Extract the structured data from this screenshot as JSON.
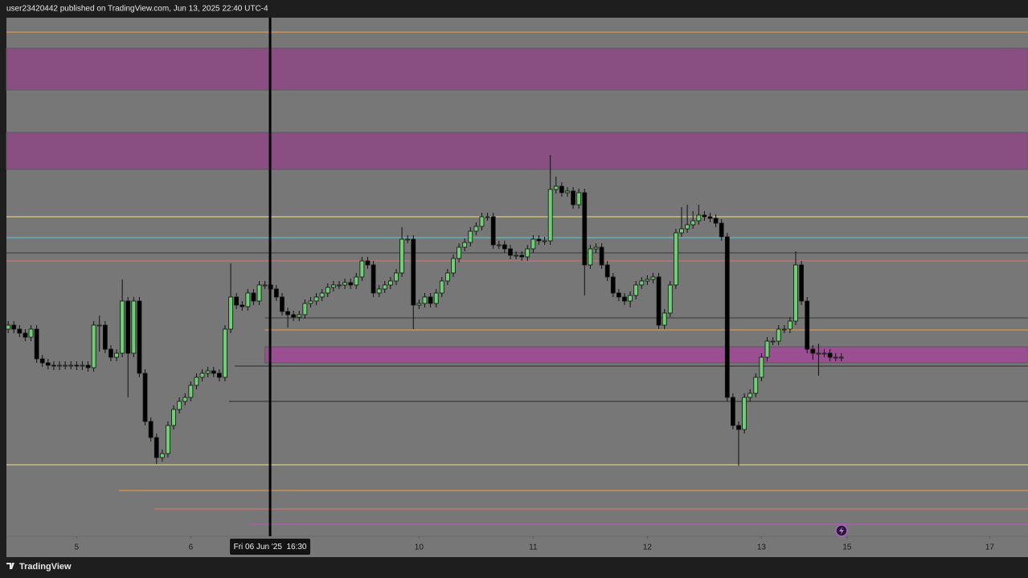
{
  "chart_data": {
    "type": "candlestick",
    "header": "user23420442 published on TradingView.com, Jun 13, 2025 22:40 UTC-4",
    "brand": "TradingView",
    "up_color": "#6fcf75",
    "down_color": "#000000",
    "background": "#777777",
    "xlim": [
      -0.3,
      178.7
    ],
    "ylim": [
      0,
      646
    ],
    "xticks": [
      {
        "value": 12,
        "label": "5"
      },
      {
        "value": 32,
        "label": "6"
      },
      {
        "value": 72,
        "label": "10"
      },
      {
        "value": 92,
        "label": "11"
      },
      {
        "value": 112,
        "label": "12"
      },
      {
        "value": 132,
        "label": "13"
      },
      {
        "value": 147,
        "label": "15"
      },
      {
        "value": 172,
        "label": "17"
      }
    ],
    "crosshair": {
      "x": 45.9,
      "label": "Fri 06 Jun '25  16:30"
    },
    "levels": [
      {
        "value": 628,
        "color": "#f0a040"
      },
      {
        "value": 398,
        "color": "#f0e080"
      },
      {
        "value": 372,
        "color": "#5cc8d8"
      },
      {
        "value": 353,
        "color": "#3a3a3a"
      },
      {
        "value": 343,
        "color": "#e07070"
      },
      {
        "value": 272,
        "color": "#3a3a3a",
        "from": 45
      },
      {
        "value": 257,
        "color": "#f0a040",
        "from": 45
      },
      {
        "value": 212,
        "color": "#2a2a2a",
        "from": 39.7
      },
      {
        "value": 168,
        "color": "#2a2a2a",
        "from": 38.7
      },
      {
        "value": 89,
        "color": "#f0e080"
      },
      {
        "value": 57,
        "color": "#f0a040",
        "from": 19.4
      },
      {
        "value": 34,
        "color": "#e07070",
        "from": 25.6
      },
      {
        "value": 15,
        "color": "#c050c0",
        "from": 42.3
      }
    ],
    "zones": [
      {
        "top": 608,
        "bottom": 556,
        "color": "#8a4f82"
      },
      {
        "top": 503,
        "bottom": 457,
        "color": "#8a4f82"
      },
      {
        "top": 236,
        "bottom": 216,
        "color": "#9a4f92",
        "from": 45
      }
    ],
    "open": [
      258,
      263,
      258,
      253,
      248,
      258,
      221,
      216,
      213,
      212,
      213,
      213,
      213,
      212,
      213,
      210,
      263,
      263,
      233,
      223,
      228,
      293,
      228,
      293,
      203,
      143,
      123,
      98,
      103,
      138,
      158,
      168,
      173,
      188,
      198,
      203,
      206,
      203,
      198,
      258,
      298,
      288,
      286,
      303,
      293,
      313,
      313,
      308,
      298,
      280,
      276,
      273,
      276,
      290,
      293,
      298,
      303,
      310,
      313,
      313,
      316,
      313,
      323,
      343,
      338,
      303,
      308,
      313,
      318,
      328,
      370,
      370,
      288,
      290,
      298,
      290,
      303,
      318,
      328,
      346,
      360,
      366,
      380,
      386,
      398,
      398,
      363,
      363,
      358,
      350,
      350,
      348,
      358,
      370,
      368,
      368,
      432,
      436,
      428,
      430,
      413,
      428,
      338,
      358,
      360,
      338,
      323,
      303,
      298,
      293,
      300,
      313,
      318,
      320,
      323,
      263,
      278,
      313,
      378,
      383,
      388,
      393,
      400,
      398,
      396,
      390,
      373,
      173,
      138,
      133,
      173,
      178,
      198,
      223,
      243,
      243,
      258,
      258,
      268,
      338,
      293,
      233,
      228,
      228,
      228,
      223,
      223
    ],
    "close": [
      263,
      258,
      253,
      248,
      258,
      221,
      216,
      213,
      212,
      213,
      213,
      213,
      212,
      213,
      210,
      263,
      263,
      233,
      223,
      228,
      293,
      228,
      293,
      203,
      143,
      123,
      98,
      103,
      138,
      158,
      168,
      173,
      188,
      198,
      203,
      206,
      203,
      198,
      258,
      298,
      288,
      286,
      303,
      293,
      313,
      313,
      308,
      298,
      280,
      276,
      273,
      276,
      290,
      293,
      298,
      303,
      310,
      313,
      313,
      316,
      313,
      323,
      343,
      338,
      303,
      308,
      313,
      318,
      328,
      370,
      370,
      288,
      290,
      298,
      290,
      303,
      318,
      328,
      346,
      360,
      366,
      380,
      386,
      398,
      398,
      363,
      363,
      358,
      350,
      350,
      348,
      358,
      370,
      368,
      368,
      432,
      436,
      428,
      430,
      413,
      428,
      338,
      358,
      360,
      338,
      323,
      303,
      298,
      293,
      300,
      313,
      318,
      320,
      323,
      263,
      278,
      313,
      378,
      383,
      388,
      393,
      400,
      398,
      396,
      390,
      373,
      173,
      138,
      133,
      173,
      178,
      198,
      223,
      243,
      243,
      258,
      258,
      268,
      338,
      293,
      233,
      228,
      228,
      228,
      223,
      223,
      223
    ],
    "high": [
      268,
      268,
      263,
      258,
      263,
      263,
      226,
      221,
      218,
      218,
      218,
      218,
      218,
      218,
      218,
      268,
      275,
      268,
      238,
      233,
      320,
      298,
      298,
      298,
      208,
      148,
      128,
      108,
      143,
      163,
      173,
      178,
      193,
      203,
      208,
      211,
      211,
      208,
      263,
      340,
      303,
      293,
      308,
      308,
      318,
      318,
      318,
      313,
      303,
      285,
      281,
      281,
      295,
      298,
      303,
      308,
      315,
      318,
      318,
      321,
      321,
      328,
      348,
      348,
      343,
      313,
      318,
      323,
      333,
      385,
      375,
      375,
      295,
      303,
      303,
      308,
      323,
      333,
      351,
      365,
      371,
      385,
      391,
      403,
      403,
      403,
      368,
      368,
      363,
      355,
      355,
      363,
      375,
      375,
      373,
      475,
      448,
      441,
      435,
      435,
      433,
      433,
      363,
      365,
      365,
      343,
      328,
      308,
      303,
      305,
      318,
      323,
      325,
      328,
      328,
      283,
      318,
      383,
      410,
      413,
      405,
      413,
      405,
      403,
      401,
      395,
      378,
      178,
      143,
      178,
      183,
      203,
      228,
      248,
      248,
      263,
      263,
      273,
      355,
      343,
      298,
      238,
      240,
      233,
      233,
      228,
      228
    ],
    "low": [
      253,
      253,
      248,
      243,
      243,
      216,
      211,
      208,
      207,
      207,
      208,
      208,
      207,
      207,
      205,
      205,
      230,
      228,
      218,
      218,
      223,
      173,
      223,
      198,
      138,
      118,
      90,
      93,
      98,
      133,
      153,
      163,
      168,
      183,
      193,
      198,
      198,
      193,
      193,
      253,
      283,
      281,
      281,
      288,
      288,
      308,
      303,
      293,
      275,
      260,
      268,
      268,
      271,
      285,
      288,
      293,
      298,
      305,
      308,
      308,
      308,
      308,
      318,
      333,
      298,
      298,
      303,
      308,
      313,
      323,
      365,
      258,
      283,
      285,
      285,
      285,
      298,
      313,
      323,
      341,
      355,
      361,
      375,
      381,
      393,
      358,
      358,
      353,
      345,
      345,
      343,
      343,
      353,
      363,
      363,
      363,
      427,
      423,
      423,
      408,
      408,
      300,
      333,
      353,
      333,
      318,
      298,
      293,
      288,
      285,
      295,
      308,
      313,
      315,
      258,
      258,
      273,
      308,
      373,
      378,
      383,
      388,
      393,
      391,
      385,
      368,
      168,
      133,
      88,
      128,
      168,
      173,
      193,
      218,
      238,
      238,
      253,
      253,
      263,
      288,
      228,
      220,
      200,
      223,
      218,
      218,
      218
    ]
  }
}
